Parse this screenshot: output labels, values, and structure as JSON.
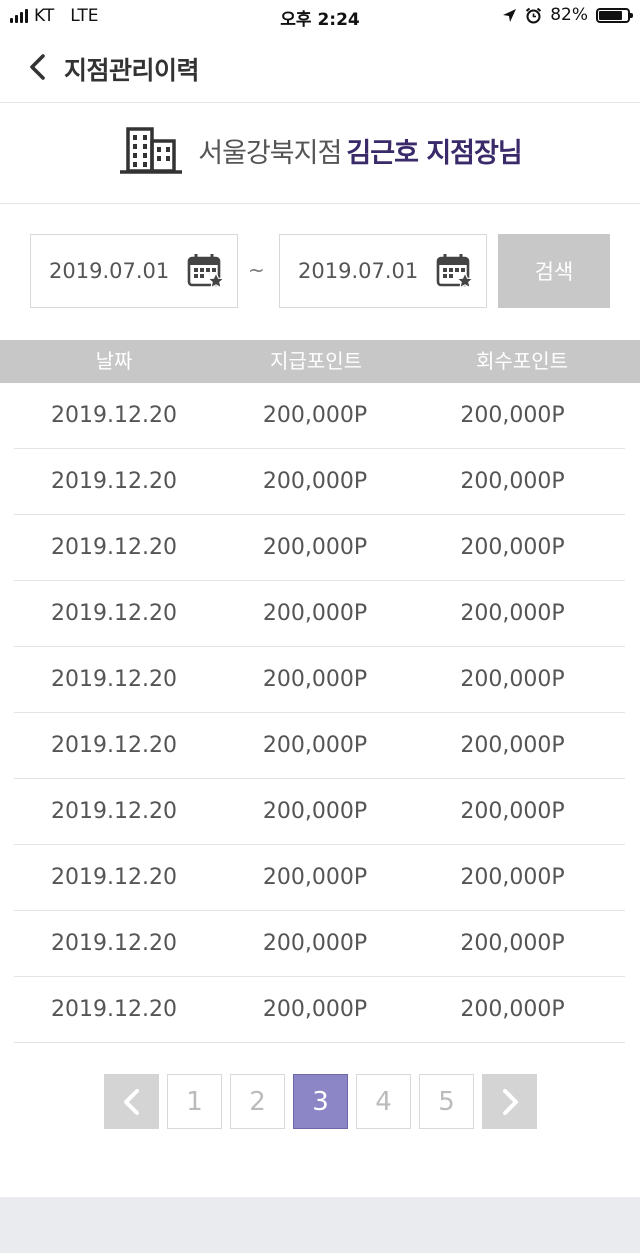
{
  "status_bar": {
    "carrier": "KT",
    "network": "LTE",
    "time": "오후 2:24",
    "battery": "82%",
    "battery_level": 0.82
  },
  "header": {
    "title": "지점관리이력",
    "back_icon": "chevron-left-icon"
  },
  "branch": {
    "icon": "building-icon",
    "name": "서울강북지점",
    "manager": "김근호 지점장님"
  },
  "filter": {
    "start_date": "2019.07.01",
    "end_date": "2019.07.01",
    "separator": "~",
    "calendar_icon": "calendar-star-icon",
    "search_label": "검색"
  },
  "table": {
    "columns": [
      "날짜",
      "지급포인트",
      "회수포인트"
    ],
    "rows": [
      [
        "2019.12.20",
        "200,000P",
        "200,000P"
      ],
      [
        "2019.12.20",
        "200,000P",
        "200,000P"
      ],
      [
        "2019.12.20",
        "200,000P",
        "200,000P"
      ],
      [
        "2019.12.20",
        "200,000P",
        "200,000P"
      ],
      [
        "2019.12.20",
        "200,000P",
        "200,000P"
      ],
      [
        "2019.12.20",
        "200,000P",
        "200,000P"
      ],
      [
        "2019.12.20",
        "200,000P",
        "200,000P"
      ],
      [
        "2019.12.20",
        "200,000P",
        "200,000P"
      ],
      [
        "2019.12.20",
        "200,000P",
        "200,000P"
      ],
      [
        "2019.12.20",
        "200,000P",
        "200,000P"
      ]
    ]
  },
  "pagination": {
    "pages": [
      "1",
      "2",
      "3",
      "4",
      "5"
    ],
    "current": "3"
  },
  "colors": {
    "accent": "#8d86c6",
    "manager_text": "#3a2a6a",
    "table_header": "#c7c7c7"
  }
}
